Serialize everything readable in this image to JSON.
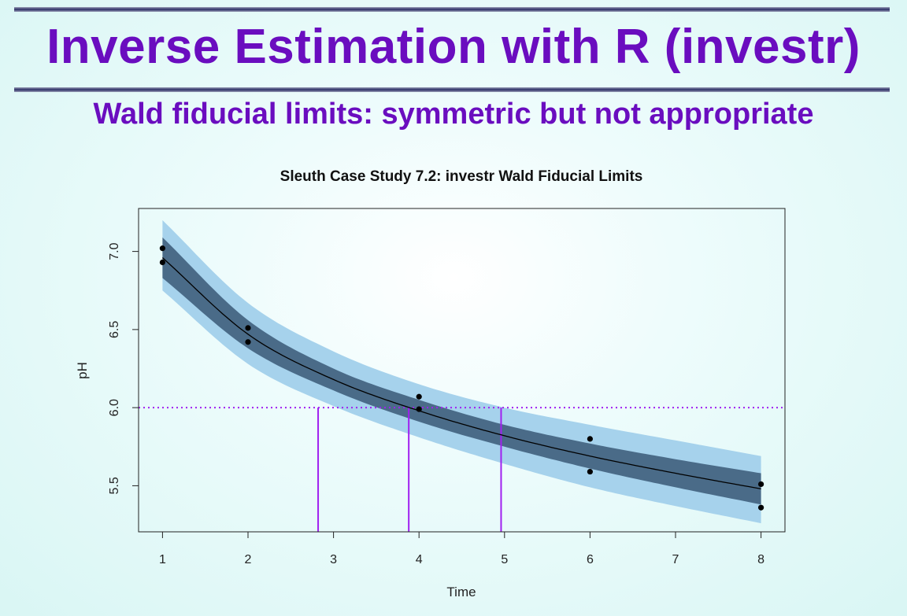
{
  "slide": {
    "title": "Inverse Estimation with R (investr)",
    "subtitle": "Wald fiducial limits: symmetric but not appropriate"
  },
  "colors": {
    "title": "#6a0dbf",
    "outer_band": "#a6d2ec",
    "inner_band": "#4a6b88",
    "reference_lines": "#a020f0",
    "points": "#000000"
  },
  "chart_data": {
    "type": "scatter",
    "title": "Sleuth Case Study 7.2: investr Wald Fiducial Limits",
    "xlabel": "Time",
    "ylabel": "pH",
    "xlim": [
      0.72,
      8.28
    ],
    "ylim": [
      5.205,
      7.275
    ],
    "x_ticks": [
      1,
      2,
      3,
      4,
      5,
      6,
      7,
      8
    ],
    "y_ticks": [
      5.5,
      6.0,
      6.5,
      7.0
    ],
    "grid": false,
    "points": {
      "x": [
        1,
        1,
        2,
        2,
        4,
        4,
        6,
        6,
        8,
        8
      ],
      "y": [
        7.02,
        6.93,
        6.51,
        6.42,
        6.07,
        5.99,
        5.8,
        5.59,
        5.51,
        5.36
      ]
    },
    "fit_curve": {
      "x": [
        1,
        2,
        3,
        4,
        5,
        6,
        7,
        8
      ],
      "y": [
        6.96,
        6.47,
        6.18,
        5.98,
        5.82,
        5.69,
        5.58,
        5.48
      ]
    },
    "confidence_band": {
      "x": [
        1,
        2,
        3,
        4,
        5,
        6,
        7,
        8
      ],
      "lower": [
        6.83,
        6.38,
        6.11,
        5.91,
        5.75,
        5.61,
        5.49,
        5.38
      ],
      "upper": [
        7.09,
        6.56,
        6.25,
        6.05,
        5.89,
        5.77,
        5.67,
        5.58
      ]
    },
    "prediction_band": {
      "x": [
        1,
        2,
        3,
        4,
        5,
        6,
        7,
        8
      ],
      "lower": [
        6.75,
        6.28,
        6.01,
        5.81,
        5.64,
        5.49,
        5.37,
        5.26
      ],
      "upper": [
        7.2,
        6.67,
        6.36,
        6.15,
        6.0,
        5.89,
        5.79,
        5.69
      ]
    },
    "reference_line_y": 6.0,
    "fiducial_estimate": 3.88,
    "fiducial_limits": [
      2.82,
      4.96
    ]
  }
}
